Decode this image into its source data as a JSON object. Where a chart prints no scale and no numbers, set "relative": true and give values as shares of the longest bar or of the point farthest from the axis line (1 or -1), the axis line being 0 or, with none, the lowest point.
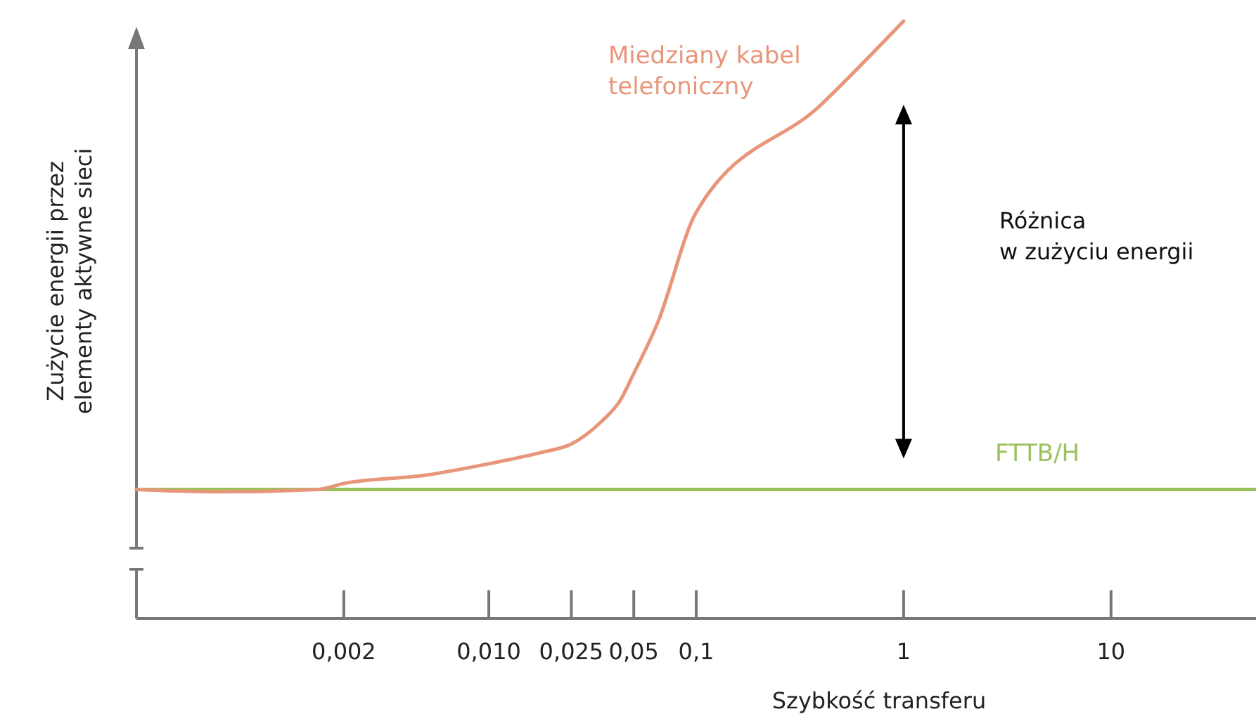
{
  "chart_data": {
    "type": "line",
    "relative": true,
    "xlabel": "Szybkość transferu",
    "ylabel": "Zużycie energii przez elementy aktywne sieci",
    "log": "x",
    "xlim": [
      0.0002,
      50
    ],
    "xticks": [
      {
        "value": 0.002,
        "label": "0,002"
      },
      {
        "value": 0.01,
        "label": "0,010"
      },
      {
        "value": 0.025,
        "label": "0,025"
      },
      {
        "value": 0.05,
        "label": "0,05"
      },
      {
        "value": 0.1,
        "label": "0,1"
      },
      {
        "value": 1,
        "label": "1"
      },
      {
        "value": 10,
        "label": "10"
      }
    ],
    "series": [
      {
        "name": "Miedziany kabel telefoniczny",
        "color": "#e8967a",
        "x": [
          0.0002,
          0.0005,
          0.0015,
          0.002,
          0.005,
          0.01,
          0.018,
          0.025,
          0.035,
          0.043,
          0.05,
          0.065,
          0.1,
          0.4,
          1
        ],
        "values": [
          0.216,
          0.212,
          0.216,
          0.226,
          0.24,
          0.259,
          0.278,
          0.292,
          0.33,
          0.365,
          0.41,
          0.494,
          0.68,
          0.86,
          1
        ]
      },
      {
        "name": "FTTB/H",
        "color": "#9bc25a",
        "x": [
          0.0002,
          50
        ],
        "values": [
          0.216,
          0.216
        ]
      }
    ],
    "annotations": [
      "Różnica w zużyciu energii"
    ]
  }
}
